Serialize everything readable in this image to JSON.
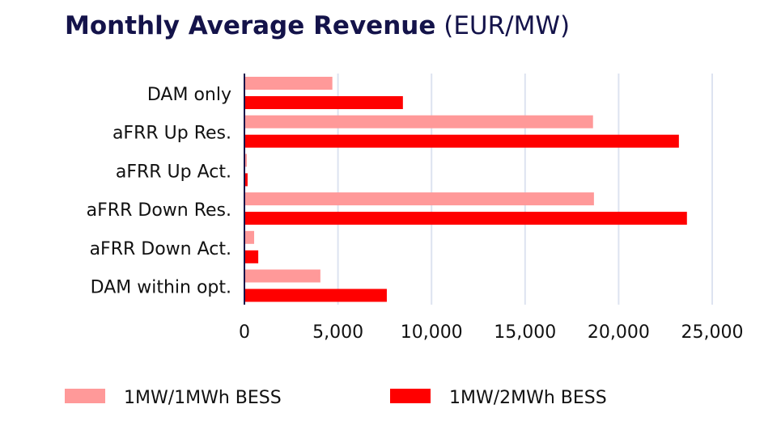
{
  "chart_data": {
    "type": "bar",
    "orientation": "horizontal",
    "title": "Monthly Average Revenue",
    "title_unit": "(EUR/MW)",
    "categories": [
      "DAM only",
      "aFRR Up Res.",
      "aFRR Up Act.",
      "aFRR Down Res.",
      "aFRR Down Act.",
      "DAM within opt."
    ],
    "series": [
      {
        "name": "1MW/1MWh BESS",
        "color": "#ff9999",
        "values": [
          4700,
          18630,
          130,
          18680,
          520,
          4060
        ]
      },
      {
        "name": "1MW/2MWh BESS",
        "color": "#ff0000",
        "values": [
          8470,
          23220,
          170,
          23650,
          740,
          7610
        ]
      }
    ],
    "xlim": [
      0,
      25000
    ],
    "xticks": [
      0,
      5000,
      10000,
      15000,
      20000,
      25000
    ],
    "xtick_labels": [
      "0",
      "5,000",
      "10,000",
      "15,000",
      "20,000",
      "25,000"
    ],
    "grid": "vertical",
    "legend_placement": "bottom",
    "xlabel": "",
    "ylabel": ""
  }
}
